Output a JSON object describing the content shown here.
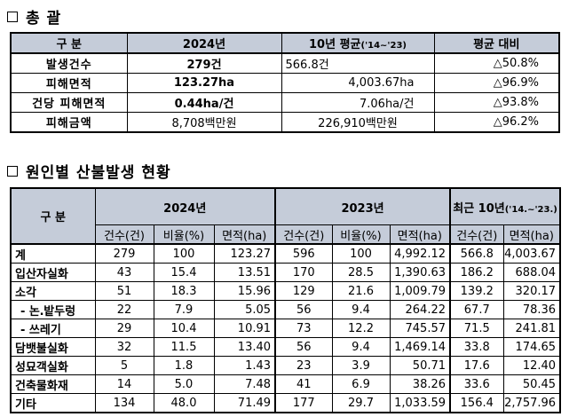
{
  "section1": {
    "title": "총 괄"
  },
  "summary": {
    "headers": [
      "구 분",
      "2024년",
      "10년 평균",
      "('14~'23)",
      "평균 대비"
    ],
    "rows": [
      {
        "label": "발생건수",
        "y2024": "279건",
        "avg": "566.8건",
        "vs": "△50.8%"
      },
      {
        "label": "피해면적",
        "y2024": "123.27ha",
        "avg": "4,003.67ha",
        "vs": "△96.9%"
      },
      {
        "label": "건당 피해면적",
        "y2024": "0.44ha/건",
        "avg": "7.06ha/건",
        "vs": "△93.8%"
      },
      {
        "label": "피해금액",
        "y2024": "8,708백만원",
        "avg": "226,910백만원",
        "vs": "△96.2%"
      }
    ]
  },
  "section2": {
    "title": "원인별 산불발생 현황"
  },
  "cause": {
    "header": {
      "category": "구 분",
      "y2024": "2024년",
      "y2023": "2023년",
      "recent": "최근 10년",
      "recent_period": "('14.~'23.)",
      "cols": [
        "건수(건)",
        "비율(%)",
        "면적(ha)",
        "건수(건)",
        "비율(%)",
        "면적(ha)",
        "건수(건)",
        "면적(ha)"
      ]
    },
    "rows": [
      {
        "label": "계",
        "v": [
          "279",
          "100",
          "123.27",
          "596",
          "100",
          "4,992.12",
          "566.8",
          "4,003.67"
        ]
      },
      {
        "label": "입산자실화",
        "v": [
          "43",
          "15.4",
          "13.51",
          "170",
          "28.5",
          "1,390.63",
          "186.2",
          "688.04"
        ]
      },
      {
        "label": "소각",
        "v": [
          "51",
          "18.3",
          "15.96",
          "129",
          "21.6",
          "1,009.79",
          "139.2",
          "320.17"
        ]
      },
      {
        "label": "- 논․밭두렁",
        "v": [
          "22",
          "7.9",
          "5.05",
          "56",
          "9.4",
          "264.22",
          "67.7",
          "78.36"
        ]
      },
      {
        "label": "- 쓰레기",
        "v": [
          "29",
          "10.4",
          "10.91",
          "73",
          "12.2",
          "745.57",
          "71.5",
          "241.81"
        ]
      },
      {
        "label": "담뱃불실화",
        "v": [
          "32",
          "11.5",
          "13.40",
          "56",
          "9.4",
          "1,469.14",
          "33.8",
          "174.65"
        ]
      },
      {
        "label": "성묘객실화",
        "v": [
          "5",
          "1.8",
          "1.43",
          "23",
          "3.9",
          "50.71",
          "17.6",
          "12.40"
        ]
      },
      {
        "label": "건축물화재",
        "v": [
          "14",
          "5.0",
          "7.48",
          "41",
          "6.9",
          "38.26",
          "33.6",
          "50.45"
        ]
      },
      {
        "label": "기타",
        "v": [
          "134",
          "48.0",
          "71.49",
          "177",
          "29.7",
          "1,033.59",
          "156.4",
          "2,757.96"
        ]
      }
    ]
  }
}
